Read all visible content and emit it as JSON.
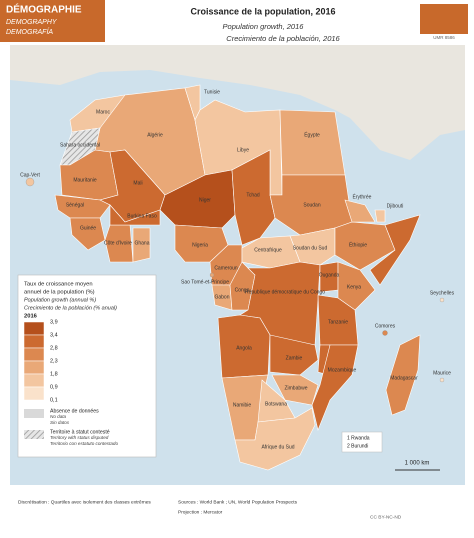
{
  "header": {
    "tag": "DÉMOGRAPHIE",
    "tag_en": "DEMOGRAPHY",
    "tag_es": "DEMOGRAFÍA",
    "title": "Croissance de la population, 2016",
    "title_en": "Population growth, 2016",
    "title_es": "Crecimiento de la población, 2016",
    "logo": "UMR 8586"
  },
  "legend": {
    "title": "Taux de croissance moyen",
    "title2": "annuel de la population (%)",
    "title_en": "Population growth (annual %)",
    "title_es": "Crecimiento de la población (% anual)",
    "year": "2016",
    "breaks": [
      {
        "value": 3.9,
        "label": "3,9"
      },
      {
        "value": 3.4,
        "label": "3,4"
      },
      {
        "value": 2.8,
        "label": "2,8"
      },
      {
        "value": 2.3,
        "label": "2,3"
      },
      {
        "value": 1.8,
        "label": "1,8"
      },
      {
        "value": 0.9,
        "label": "0,9"
      },
      {
        "value": 0.1,
        "label": "0,1"
      }
    ],
    "colors": [
      "#b5501c",
      "#cc6a30",
      "#dc8850",
      "#e9a877",
      "#f3c6a0",
      "#fae2cb"
    ],
    "nodata": "Absence de données",
    "nodata_en": "No data",
    "nodata_es": "Sin datos",
    "disputed": "Territoire à statut contesté",
    "disputed_en": "Territory with status disputed",
    "disputed_es": "Territorio con estatuto contestado"
  },
  "countries": [
    {
      "name": "Maroc",
      "value": 1.3
    },
    {
      "name": "Algérie",
      "value": 1.9
    },
    {
      "name": "Tunisie",
      "value": 1.1
    },
    {
      "name": "Libye",
      "value": 1.4
    },
    {
      "name": "Égypte",
      "value": 2.0
    },
    {
      "name": "Sahara occidental",
      "value": null
    },
    {
      "name": "Mauritanie",
      "value": 2.8
    },
    {
      "name": "Mali",
      "value": 3.0
    },
    {
      "name": "Niger",
      "value": 3.9
    },
    {
      "name": "Tchad",
      "value": 3.3
    },
    {
      "name": "Soudan",
      "value": 2.4
    },
    {
      "name": "Soudan du Sud",
      "value": 1.2
    },
    {
      "name": "Éthiopie",
      "value": 2.5
    },
    {
      "name": null,
      "value": 2.9
    },
    {
      "name": "Érythrée",
      "value": 2.2
    },
    {
      "name": "Sénégal",
      "value": 2.8
    },
    {
      "name": "Guinée",
      "value": 2.6
    },
    {
      "name": "Côte d'Ivoire",
      "value": 2.5
    },
    {
      "name": "Burkina Faso",
      "value": 2.9
    },
    {
      "name": "Ghana",
      "value": 2.2
    },
    {
      "name": "Nigeria",
      "value": 2.6
    },
    {
      "name": "Cameroun",
      "value": 2.6
    },
    {
      "name": "Centrafrique",
      "value": 1.3
    },
    {
      "name": "Gabon",
      "value": 2.2
    },
    {
      "name": "Congo",
      "value": 2.6
    },
    {
      "name": "République démocratique du Congo",
      "value": 3.2
    },
    {
      "name": "Ouganda",
      "value": 3.3
    },
    {
      "name": "Kenya",
      "value": 2.6
    },
    {
      "name": "Tanzanie",
      "value": 3.1
    },
    {
      "name": "Angola",
      "value": 3.4
    },
    {
      "name": "Zambie",
      "value": 3.0
    },
    {
      "name": null,
      "value": 2.9
    },
    {
      "name": "Mozambique",
      "value": 2.9
    },
    {
      "name": "Zimbabwe",
      "value": 2.3
    },
    {
      "name": "Namibie",
      "value": 2.2
    },
    {
      "name": "Botswana",
      "value": 1.8
    },
    {
      "name": "Afrique du Sud",
      "value": 1.2
    },
    {
      "name": "Madagascar",
      "value": 2.7
    },
    {
      "name": "Cap-Vert",
      "value": 1.2
    },
    {
      "name": "Seychelles",
      "value": 0.5
    },
    {
      "name": "Comores",
      "value": 2.4
    },
    {
      "name": "Maurice",
      "value": 0.2
    },
    {
      "name": "Sao Tomé-et-Principe",
      "value": 2.2
    },
    {
      "name": "Djibouti",
      "value": 1.6
    }
  ],
  "notes": [
    "1 Rwanda",
    "2 Burundi"
  ],
  "scale": "1 000 km",
  "footer": {
    "method": "Discrétisation : Quartiles avec isolement des classes extrêmes",
    "sources": "Sources : World Bank ; UN, World Population Prospects",
    "projection": "Projection : Mercator",
    "license": "CC BY-NC-ND"
  }
}
